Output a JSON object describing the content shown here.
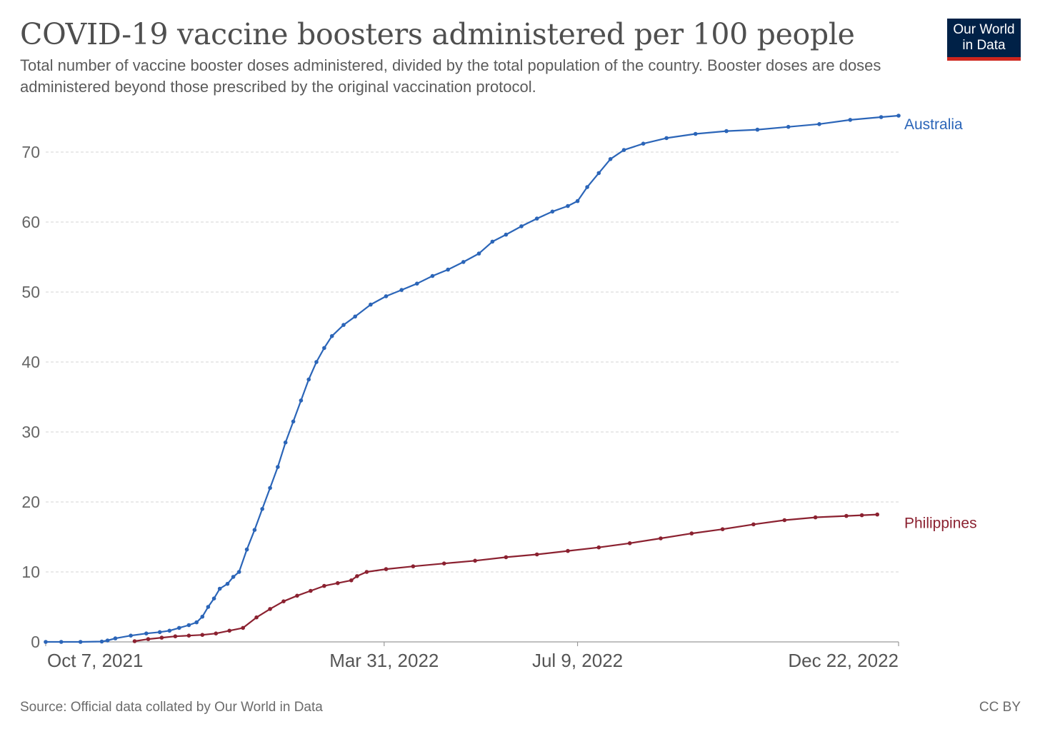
{
  "title": "COVID-19 vaccine boosters administered per 100 people",
  "subtitle": "Total number of vaccine booster doses administered, divided by the total population of the country. Booster doses are doses administered beyond those prescribed by the original vaccination protocol.",
  "logo": {
    "line1": "Our World",
    "line2": "in Data"
  },
  "source": "Source: Official data collated by Our World in Data",
  "license": "CC BY",
  "chart_data": {
    "type": "line",
    "title": "COVID-19 vaccine boosters administered per 100 people",
    "xlabel": "",
    "ylabel": "",
    "xlim": [
      "2021-10-07",
      "2022-12-22"
    ],
    "ylim": [
      0,
      75
    ],
    "yticks": [
      0,
      10,
      20,
      30,
      40,
      50,
      60,
      70
    ],
    "xticks": [
      {
        "date": "2021-10-07",
        "label": "Oct 7, 2021"
      },
      {
        "date": "2022-03-31",
        "label": "Mar 31, 2022"
      },
      {
        "date": "2022-07-09",
        "label": "Jul 9, 2022"
      },
      {
        "date": "2022-12-22",
        "label": "Dec 22, 2022"
      }
    ],
    "grid": "horizontal dashed",
    "legend": "inline labels at line ends (right)",
    "series": [
      {
        "name": "Australia",
        "color": "#2b65b8",
        "points": [
          [
            "2021-10-07",
            0
          ],
          [
            "2021-10-15",
            0
          ],
          [
            "2021-10-25",
            0
          ],
          [
            "2021-11-05",
            0.05
          ],
          [
            "2021-11-08",
            0.2
          ],
          [
            "2021-11-12",
            0.5
          ],
          [
            "2021-11-20",
            0.9
          ],
          [
            "2021-11-28",
            1.2
          ],
          [
            "2021-12-05",
            1.4
          ],
          [
            "2021-12-10",
            1.6
          ],
          [
            "2021-12-15",
            2.0
          ],
          [
            "2021-12-20",
            2.4
          ],
          [
            "2021-12-24",
            2.8
          ],
          [
            "2021-12-27",
            3.6
          ],
          [
            "2021-12-30",
            5.0
          ],
          [
            "2022-01-02",
            6.2
          ],
          [
            "2022-01-05",
            7.6
          ],
          [
            "2022-01-09",
            8.3
          ],
          [
            "2022-01-12",
            9.3
          ],
          [
            "2022-01-15",
            10.0
          ],
          [
            "2022-01-19",
            13.2
          ],
          [
            "2022-01-23",
            16.0
          ],
          [
            "2022-01-27",
            19.0
          ],
          [
            "2022-01-31",
            22.0
          ],
          [
            "2022-02-04",
            25.0
          ],
          [
            "2022-02-08",
            28.5
          ],
          [
            "2022-02-12",
            31.5
          ],
          [
            "2022-02-16",
            34.5
          ],
          [
            "2022-02-20",
            37.5
          ],
          [
            "2022-02-24",
            40.0
          ],
          [
            "2022-02-28",
            42.0
          ],
          [
            "2022-03-04",
            43.7
          ],
          [
            "2022-03-10",
            45.3
          ],
          [
            "2022-03-16",
            46.5
          ],
          [
            "2022-03-24",
            48.2
          ],
          [
            "2022-04-01",
            49.4
          ],
          [
            "2022-04-09",
            50.3
          ],
          [
            "2022-04-17",
            51.2
          ],
          [
            "2022-04-25",
            52.3
          ],
          [
            "2022-05-03",
            53.2
          ],
          [
            "2022-05-11",
            54.3
          ],
          [
            "2022-05-19",
            55.5
          ],
          [
            "2022-05-26",
            57.2
          ],
          [
            "2022-06-02",
            58.2
          ],
          [
            "2022-06-10",
            59.4
          ],
          [
            "2022-06-18",
            60.5
          ],
          [
            "2022-06-26",
            61.5
          ],
          [
            "2022-07-04",
            62.3
          ],
          [
            "2022-07-09",
            63.0
          ],
          [
            "2022-07-14",
            65.0
          ],
          [
            "2022-07-20",
            67.0
          ],
          [
            "2022-07-26",
            69.0
          ],
          [
            "2022-08-02",
            70.3
          ],
          [
            "2022-08-12",
            71.2
          ],
          [
            "2022-08-24",
            72.0
          ],
          [
            "2022-09-08",
            72.6
          ],
          [
            "2022-09-24",
            73.0
          ],
          [
            "2022-10-10",
            73.2
          ],
          [
            "2022-10-26",
            73.6
          ],
          [
            "2022-11-11",
            74.0
          ],
          [
            "2022-11-27",
            74.6
          ],
          [
            "2022-12-13",
            75.0
          ],
          [
            "2022-12-22",
            75.2
          ]
        ]
      },
      {
        "name": "Philippines",
        "color": "#8b2130",
        "points": [
          [
            "2021-11-22",
            0.1
          ],
          [
            "2021-11-29",
            0.4
          ],
          [
            "2021-12-06",
            0.6
          ],
          [
            "2021-12-13",
            0.8
          ],
          [
            "2021-12-20",
            0.9
          ],
          [
            "2021-12-27",
            1.0
          ],
          [
            "2022-01-03",
            1.2
          ],
          [
            "2022-01-10",
            1.6
          ],
          [
            "2022-01-17",
            2.0
          ],
          [
            "2022-01-24",
            3.5
          ],
          [
            "2022-01-31",
            4.7
          ],
          [
            "2022-02-07",
            5.8
          ],
          [
            "2022-02-14",
            6.6
          ],
          [
            "2022-02-21",
            7.3
          ],
          [
            "2022-02-28",
            8.0
          ],
          [
            "2022-03-07",
            8.4
          ],
          [
            "2022-03-14",
            8.8
          ],
          [
            "2022-03-17",
            9.4
          ],
          [
            "2022-03-22",
            10.0
          ],
          [
            "2022-04-01",
            10.4
          ],
          [
            "2022-04-15",
            10.8
          ],
          [
            "2022-05-01",
            11.2
          ],
          [
            "2022-05-17",
            11.6
          ],
          [
            "2022-06-02",
            12.1
          ],
          [
            "2022-06-18",
            12.5
          ],
          [
            "2022-07-04",
            13.0
          ],
          [
            "2022-07-20",
            13.5
          ],
          [
            "2022-08-05",
            14.1
          ],
          [
            "2022-08-21",
            14.8
          ],
          [
            "2022-09-06",
            15.5
          ],
          [
            "2022-09-22",
            16.1
          ],
          [
            "2022-10-08",
            16.8
          ],
          [
            "2022-10-24",
            17.4
          ],
          [
            "2022-11-09",
            17.8
          ],
          [
            "2022-11-25",
            18.0
          ],
          [
            "2022-12-03",
            18.1
          ],
          [
            "2022-12-11",
            18.2
          ]
        ]
      }
    ]
  }
}
